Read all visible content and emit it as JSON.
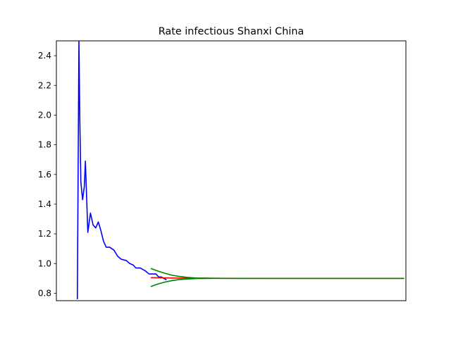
{
  "chart_data": {
    "type": "line",
    "title": "Rate infectious Shanxi China",
    "xlabel": "",
    "ylabel": "",
    "x_tick_labels": "hidden",
    "xlim": [
      0,
      200
    ],
    "ylim": [
      0.75,
      2.5
    ],
    "y_ticks": [
      "0.8",
      "1.0",
      "1.2",
      "1.4",
      "1.6",
      "1.8",
      "2.0",
      "2.2",
      "2.4"
    ],
    "grid": false,
    "series": [
      {
        "color": "#0000ff",
        "points": [
          [
            12,
            0.76
          ],
          [
            12.9,
            2.5
          ],
          [
            13.4,
            1.98
          ],
          [
            14,
            1.55
          ],
          [
            15,
            1.43
          ],
          [
            16,
            1.52
          ],
          [
            16.6,
            1.69
          ],
          [
            17.3,
            1.45
          ],
          [
            18,
            1.21
          ],
          [
            19.5,
            1.34
          ],
          [
            21,
            1.26
          ],
          [
            22.5,
            1.24
          ],
          [
            24,
            1.28
          ],
          [
            25.5,
            1.22
          ],
          [
            27,
            1.15
          ],
          [
            28.5,
            1.11
          ],
          [
            30.5,
            1.11
          ],
          [
            33,
            1.09
          ],
          [
            35,
            1.05
          ],
          [
            37,
            1.03
          ],
          [
            40,
            1.02
          ],
          [
            42,
            1.0
          ],
          [
            44,
            0.99
          ],
          [
            45.5,
            0.97
          ],
          [
            48,
            0.97
          ],
          [
            51,
            0.95
          ],
          [
            53,
            0.93
          ],
          [
            55,
            0.93
          ],
          [
            57,
            0.93
          ],
          [
            58.5,
            0.91
          ],
          [
            60,
            0.91
          ],
          [
            61.5,
            0.9
          ],
          [
            63,
            0.89
          ]
        ]
      },
      {
        "color": "#ff0000",
        "points": [
          [
            54,
            0.905
          ],
          [
            70,
            0.902
          ],
          [
            90,
            0.901
          ],
          [
            120,
            0.9
          ],
          [
            199,
            0.9
          ]
        ]
      },
      {
        "color": "#008000",
        "points": [
          [
            54,
            0.967
          ],
          [
            58,
            0.95
          ],
          [
            62,
            0.935
          ],
          [
            66,
            0.922
          ],
          [
            70,
            0.914
          ],
          [
            75,
            0.907
          ],
          [
            80,
            0.903
          ],
          [
            90,
            0.901
          ],
          [
            100,
            0.9
          ],
          [
            120,
            0.9
          ],
          [
            150,
            0.9
          ],
          [
            199,
            0.9
          ]
        ]
      },
      {
        "color": "#008000",
        "points": [
          [
            54,
            0.845
          ],
          [
            58,
            0.862
          ],
          [
            62,
            0.875
          ],
          [
            66,
            0.885
          ],
          [
            70,
            0.892
          ],
          [
            75,
            0.896
          ],
          [
            80,
            0.899
          ],
          [
            90,
            0.9
          ],
          [
            100,
            0.9
          ],
          [
            120,
            0.9
          ],
          [
            150,
            0.9
          ],
          [
            199,
            0.9
          ]
        ]
      }
    ]
  }
}
